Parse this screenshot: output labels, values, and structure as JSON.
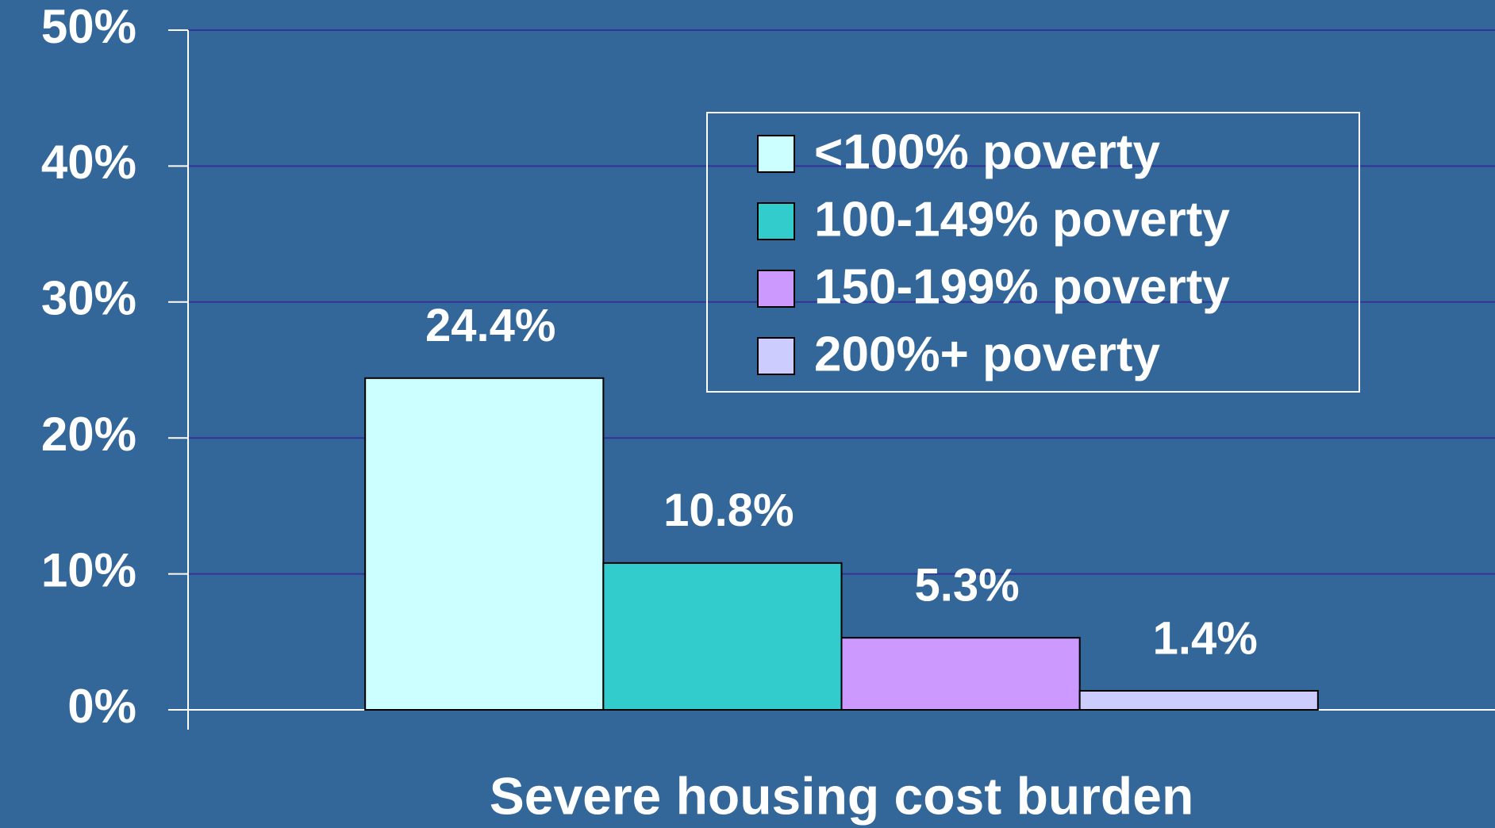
{
  "chart_data": {
    "type": "bar",
    "categories": [
      "Severe housing cost burden"
    ],
    "series": [
      {
        "name": "<100% poverty",
        "color": "#ccffff",
        "values": [
          24.4
        ],
        "value_labels": [
          "24.4%"
        ]
      },
      {
        "name": "100-149% poverty",
        "color": "#33cccc",
        "values": [
          10.8
        ],
        "value_labels": [
          "10.8%"
        ]
      },
      {
        "name": "150-199% poverty",
        "color": "#cc99ff",
        "values": [
          5.3
        ],
        "value_labels": [
          "5.3%"
        ]
      },
      {
        "name": "200%+ poverty",
        "color": "#ccccff",
        "values": [
          1.4
        ],
        "value_labels": [
          "1.4%"
        ]
      }
    ],
    "ylim": [
      0,
      50
    ],
    "yticks": [
      {
        "value": 0,
        "label": "0%"
      },
      {
        "value": 10,
        "label": "10%"
      },
      {
        "value": 20,
        "label": "20%"
      },
      {
        "value": 30,
        "label": "30%"
      },
      {
        "value": 40,
        "label": "40%"
      },
      {
        "value": 50,
        "label": "50%"
      }
    ],
    "grid": true,
    "legend": "upper right"
  }
}
